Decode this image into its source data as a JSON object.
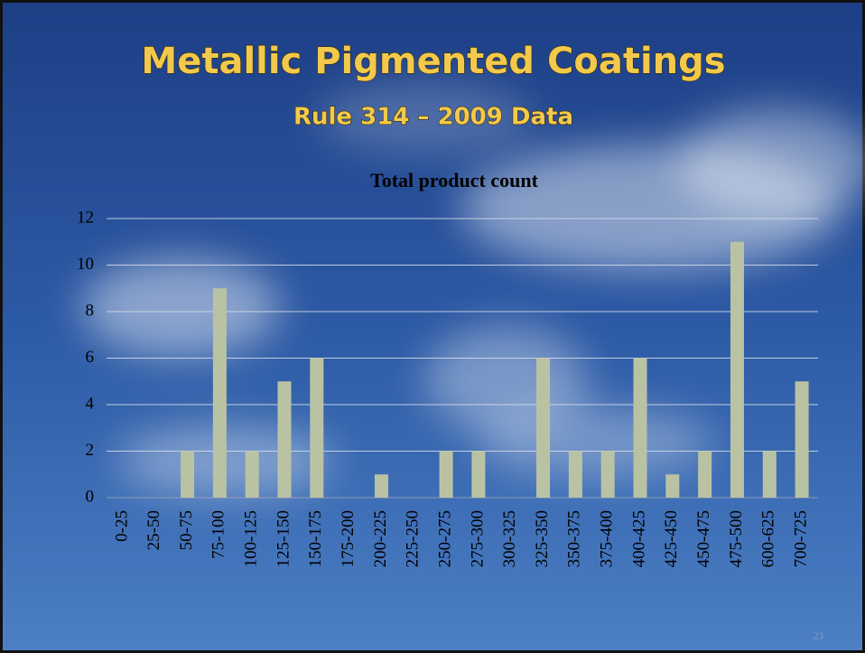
{
  "slide": {
    "title": "Metallic Pigmented Coatings",
    "subtitle": "Rule 314 – 2009 Data",
    "page_number": "23"
  },
  "chart_data": {
    "type": "bar",
    "title": "Total product count",
    "categories": [
      "0-25",
      "25-50",
      "50-75",
      "75-100",
      "100-125",
      "125-150",
      "150-175",
      "175-200",
      "200-225",
      "225-250",
      "250-275",
      "275-300",
      "300-325",
      "325-350",
      "350-375",
      "375-400",
      "400-425",
      "425-450",
      "450-475",
      "475-500",
      "600-625",
      "700-725"
    ],
    "values": [
      0,
      0,
      2,
      9,
      2,
      5,
      6,
      0,
      1,
      0,
      2,
      2,
      0,
      6,
      2,
      2,
      6,
      1,
      2,
      11,
      2,
      5
    ],
    "color": "#b9c3a4",
    "ylim": [
      0,
      12
    ],
    "yticks": [
      0,
      2,
      4,
      6,
      8,
      10,
      12
    ],
    "grid": true
  }
}
